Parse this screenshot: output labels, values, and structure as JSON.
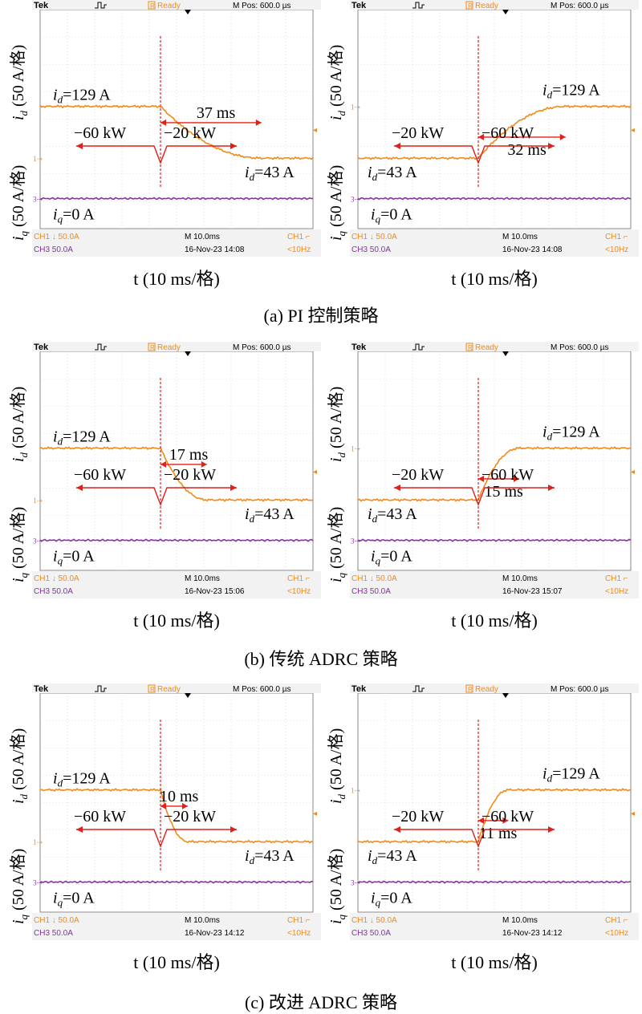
{
  "scope_ui": {
    "brand": "Tek",
    "status": "Ready",
    "status_badge": "R",
    "mpos": "M Pos: 600.0 µs",
    "ch1_scale": "CH1 ↓ 50.0A",
    "ch3_scale": "CH3  50.0A",
    "timebase": "M 10.0ms",
    "trigger_ch": "CH1",
    "trigger_freq": "<10Hz"
  },
  "labels": {
    "x_axis": "t (10 ms/格)",
    "y_axis_d": "i",
    "y_axis_d_sub": "d",
    "y_axis_q": "i",
    "y_axis_q_sub": "q",
    "y_axis_unit": " (50 A/格)"
  },
  "colors": {
    "id_trace": "#f08a18",
    "iq_trace": "#8a2ea8",
    "annotation": "#e0201a",
    "screen_bg": "#ffffff",
    "grid": "#c8c8c8",
    "header_bg": "#f2f2f2"
  },
  "chart_data": [
    {
      "type": "line",
      "group": "(a) PI 控制策略",
      "direction": "down",
      "timestamp": "16-Nov-23 14:08",
      "id_start": "129 A",
      "id_end": "43 A",
      "iq": "0 A",
      "power_before": "−60 kW",
      "power_after": "−20 kW",
      "settle_time": "37 ms",
      "series": [
        {
          "name": "i_d",
          "values": [
            129,
            43
          ]
        },
        {
          "name": "i_q",
          "values": [
            0,
            0
          ]
        }
      ]
    },
    {
      "type": "line",
      "group": "(a) PI 控制策略",
      "direction": "up",
      "timestamp": "16-Nov-23 14:08",
      "id_start": "43 A",
      "id_end": "129 A",
      "iq": "0 A",
      "power_before": "−20 kW",
      "power_after": "−60 kW",
      "settle_time": "32 ms",
      "series": [
        {
          "name": "i_d",
          "values": [
            43,
            129
          ]
        },
        {
          "name": "i_q",
          "values": [
            0,
            0
          ]
        }
      ]
    },
    {
      "type": "line",
      "group": "(b) 传统 ADRC 策略",
      "direction": "down",
      "timestamp": "16-Nov-23 15:06",
      "id_start": "129 A",
      "id_end": "43 A",
      "iq": "0 A",
      "power_before": "−60 kW",
      "power_after": "−20 kW",
      "settle_time": "17 ms",
      "series": [
        {
          "name": "i_d",
          "values": [
            129,
            43
          ]
        },
        {
          "name": "i_q",
          "values": [
            0,
            0
          ]
        }
      ]
    },
    {
      "type": "line",
      "group": "(b) 传统 ADRC 策略",
      "direction": "up",
      "timestamp": "16-Nov-23 15:07",
      "id_start": "43 A",
      "id_end": "129 A",
      "iq": "0 A",
      "power_before": "−20 kW",
      "power_after": "−60 kW",
      "settle_time": "15 ms",
      "series": [
        {
          "name": "i_d",
          "values": [
            43,
            129
          ]
        },
        {
          "name": "i_q",
          "values": [
            0,
            0
          ]
        }
      ]
    },
    {
      "type": "line",
      "group": "(c) 改进 ADRC 策略",
      "direction": "down",
      "timestamp": "16-Nov-23 14:12",
      "id_start": "129 A",
      "id_end": "43 A",
      "iq": "0 A",
      "power_before": "−60 kW",
      "power_after": "−20 kW",
      "settle_time": "10 ms",
      "series": [
        {
          "name": "i_d",
          "values": [
            129,
            43
          ]
        },
        {
          "name": "i_q",
          "values": [
            0,
            0
          ]
        }
      ]
    },
    {
      "type": "line",
      "group": "(c) 改进 ADRC 策略",
      "direction": "up",
      "timestamp": "16-Nov-23 14:12",
      "id_start": "43 A",
      "id_end": "129 A",
      "iq": "0 A",
      "power_before": "−20 kW",
      "power_after": "−60 kW",
      "settle_time": "11 ms",
      "series": [
        {
          "name": "i_d",
          "values": [
            43,
            129
          ]
        },
        {
          "name": "i_q",
          "values": [
            0,
            0
          ]
        }
      ]
    }
  ],
  "captions": [
    "(a) PI 控制策略",
    "(b) 传统 ADRC 策略",
    "(c) 改进 ADRC 策略"
  ]
}
